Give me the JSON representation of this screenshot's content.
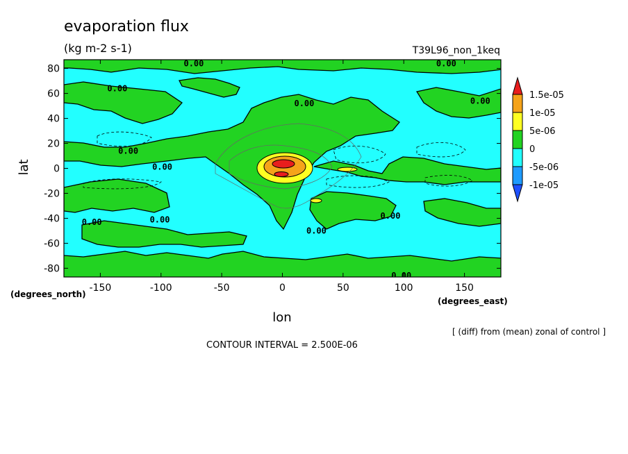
{
  "chart_data": {
    "type": "heatmap",
    "title": "evaporation flux",
    "subtitle": "(kg m-2 s-1)",
    "run_label": "T39L96_non_1keq",
    "xlabel": "lon",
    "ylabel": "lat",
    "x_units": "(degrees_east)",
    "y_units": "(degrees_north)",
    "xlim": [
      -180,
      180
    ],
    "ylim": [
      -87,
      87
    ],
    "x_ticks": [
      -150,
      -100,
      -50,
      0,
      50,
      100,
      150
    ],
    "x_tick_labels": [
      "-150",
      "-100",
      "-50",
      "0",
      "50",
      "100",
      "150"
    ],
    "y_ticks": [
      80,
      60,
      40,
      20,
      0,
      -20,
      -40,
      -60,
      -80
    ],
    "y_tick_labels": [
      "80",
      "60",
      "40",
      "20",
      "0",
      "-20",
      "-40",
      "-60",
      "-80"
    ],
    "colorbar": {
      "levels": [
        -1e-05,
        -5e-06,
        0,
        5e-06,
        1e-05,
        1.5e-05
      ],
      "labels": [
        "1.5e-05",
        "1e-05",
        "5e-06",
        "0",
        "-5e-06",
        "-1e-05"
      ],
      "colors": [
        "#e81d1d",
        "#f5a31a",
        "#ffff22",
        "#22d322",
        "#22ffff",
        "#1e9bff",
        "#1e50ff"
      ],
      "extend": "both"
    },
    "contour_labels": [
      {
        "text": "0.00",
        "lon": -73,
        "lat": 84
      },
      {
        "text": "0.00",
        "lon": 135,
        "lat": 84
      },
      {
        "text": "0.00",
        "lon": -136,
        "lat": 64
      },
      {
        "text": "0.00",
        "lon": 18,
        "lat": 52
      },
      {
        "text": "0.00",
        "lon": 163,
        "lat": 54
      },
      {
        "text": "0.00",
        "lon": -127,
        "lat": 14
      },
      {
        "text": "0.00",
        "lon": -99,
        "lat": 1
      },
      {
        "text": "0.00",
        "lon": 28,
        "lat": -50
      },
      {
        "text": "0.00",
        "lon": -157,
        "lat": -43
      },
      {
        "text": "0.00",
        "lon": -101,
        "lat": -41
      },
      {
        "text": "0.00",
        "lon": 89,
        "lat": -38
      },
      {
        "text": "0.00",
        "lon": 98,
        "lat": -86
      }
    ],
    "footer_note": "[ (diff) from (mean) zonal of control ]",
    "contour_interval": "CONTOUR INTERVAL = 2.500E-06"
  }
}
